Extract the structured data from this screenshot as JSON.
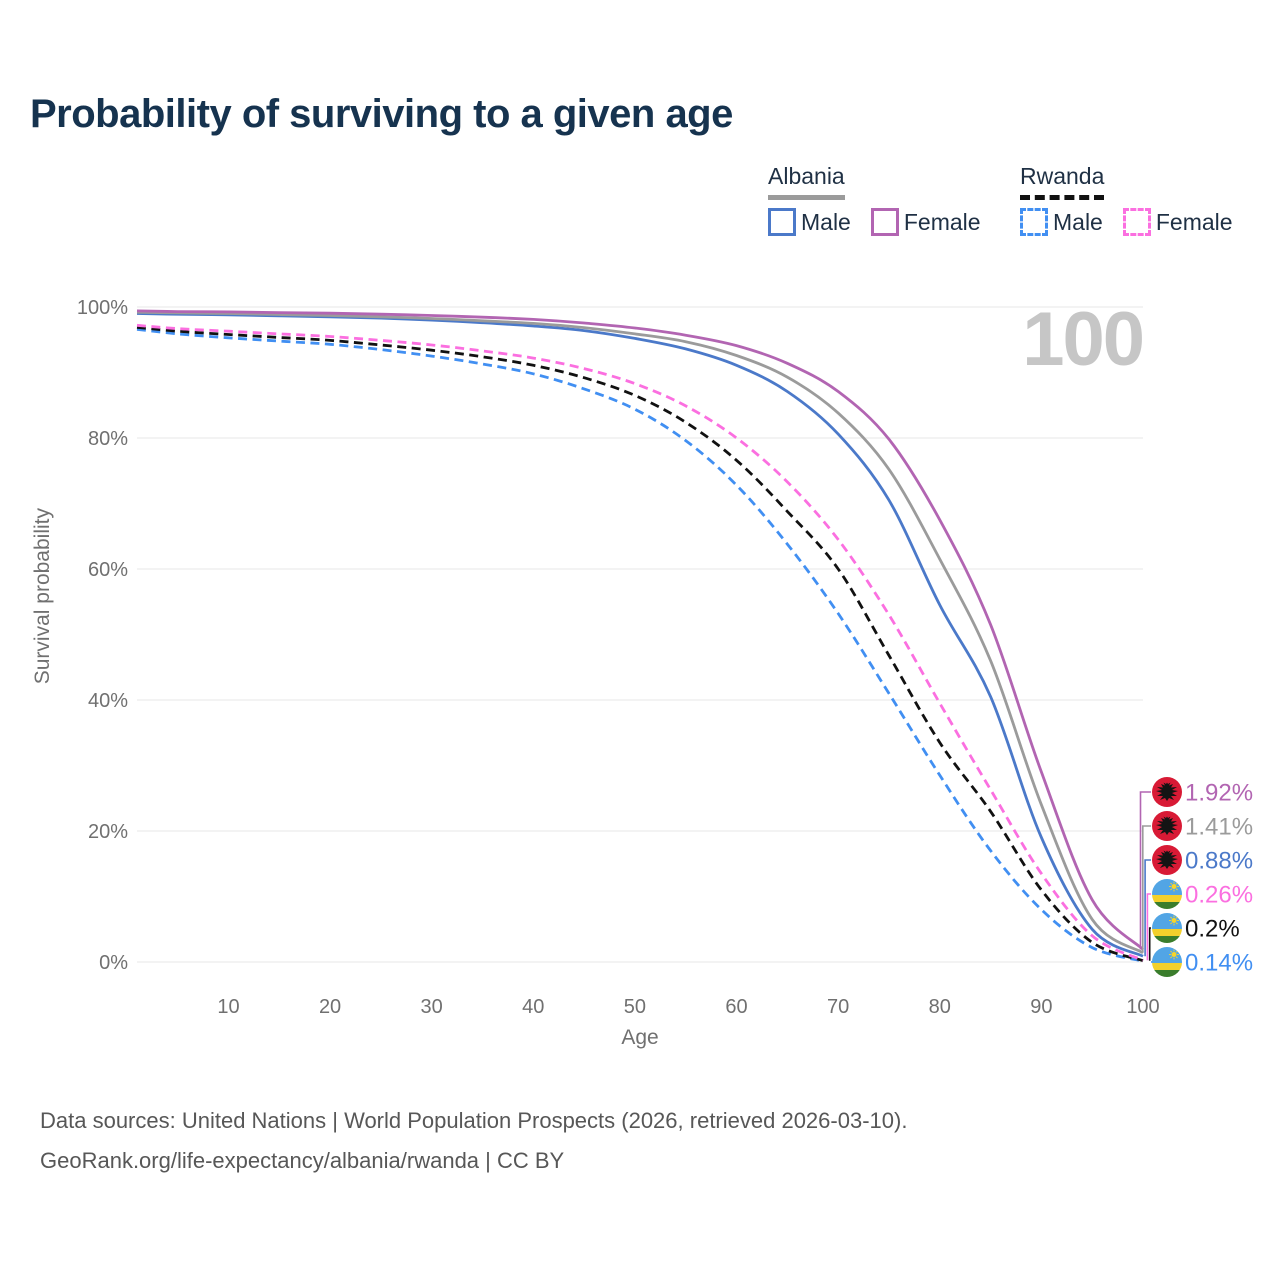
{
  "title": "Probability of surviving to a given age",
  "watermark": "100",
  "theme": {
    "title-color": "#16334f",
    "legend-text": "#1f3044",
    "axis-text": "#707070",
    "watermark-color": "#c6c6c6",
    "grid-color": "#ececec",
    "footer-color": "#575757",
    "background": "#ffffff"
  },
  "legend": {
    "groups": [
      {
        "country": "Albania",
        "line_style": "solid",
        "line_color": "#9b9b9b",
        "entries": [
          {
            "label": "Male",
            "color": "#4b79c9",
            "dashed": false
          },
          {
            "label": "Female",
            "color": "#b265b2",
            "dashed": false
          }
        ]
      },
      {
        "country": "Rwanda",
        "line_style": "dashed",
        "line_color": "#111111",
        "entries": [
          {
            "label": "Male",
            "color": "#418ff2",
            "dashed": true
          },
          {
            "label": "Female",
            "color": "#fb6fe0",
            "dashed": true
          }
        ]
      }
    ]
  },
  "chart_data": {
    "type": "line",
    "title": "Probability of surviving to a given age",
    "xlabel": "Age",
    "ylabel": "Survival probability",
    "x_domain": [
      1,
      100
    ],
    "y_domain": [
      0,
      100
    ],
    "x_ticks": [
      10,
      20,
      30,
      40,
      50,
      60,
      70,
      80,
      90,
      100
    ],
    "y_ticks": [
      0,
      20,
      40,
      60,
      80,
      100
    ],
    "y_tick_suffix": "%",
    "grid": true,
    "ages": [
      1,
      5,
      10,
      15,
      20,
      25,
      30,
      35,
      40,
      45,
      50,
      55,
      60,
      65,
      70,
      75,
      80,
      85,
      90,
      95,
      100
    ],
    "series": [
      {
        "name": "Albania Female",
        "country": "Albania",
        "style": "solid",
        "color": "#b265b2",
        "values": [
          99.4,
          99.3,
          99.25,
          99.15,
          99.05,
          98.9,
          98.7,
          98.45,
          98.1,
          97.55,
          96.8,
          95.7,
          94.1,
          91.4,
          87.1,
          79.8,
          67.5,
          51.5,
          29.0,
          9.5,
          1.92
        ]
      },
      {
        "name": "Albania",
        "country": "Albania",
        "style": "solid",
        "color": "#9b9b9b",
        "values": [
          99.2,
          99.1,
          99.0,
          98.85,
          98.7,
          98.5,
          98.25,
          97.9,
          97.5,
          96.85,
          95.9,
          94.7,
          92.6,
          89.3,
          83.8,
          75.2,
          61.5,
          46.0,
          24.0,
          6.5,
          1.41
        ]
      },
      {
        "name": "Albania Male",
        "country": "Albania",
        "style": "solid",
        "color": "#4b79c9",
        "values": [
          99.0,
          98.9,
          98.8,
          98.65,
          98.5,
          98.3,
          98.0,
          97.6,
          97.1,
          96.4,
          95.2,
          93.6,
          91.1,
          87.1,
          80.6,
          70.5,
          54.5,
          40.5,
          19.0,
          5.0,
          0.88
        ]
      },
      {
        "name": "Rwanda Female",
        "country": "Rwanda",
        "style": "dashed",
        "color": "#fb6fe0",
        "values": [
          97.2,
          96.7,
          96.3,
          95.9,
          95.5,
          94.9,
          94.2,
          93.3,
          92.2,
          90.6,
          88.3,
          84.9,
          80.0,
          73.3,
          64.5,
          53.0,
          39.5,
          26.3,
          13.5,
          4.0,
          0.26
        ]
      },
      {
        "name": "Rwanda",
        "country": "Rwanda",
        "style": "dashed",
        "color": "#111111",
        "values": [
          96.9,
          96.3,
          95.8,
          95.35,
          94.9,
          94.2,
          93.4,
          92.4,
          91.1,
          89.2,
          86.5,
          82.4,
          76.6,
          68.8,
          60.0,
          46.8,
          33.5,
          23.0,
          11.0,
          3.0,
          0.2
        ]
      },
      {
        "name": "Rwanda Male",
        "country": "Rwanda",
        "style": "dashed",
        "color": "#418ff2",
        "values": [
          96.6,
          95.9,
          95.3,
          94.8,
          94.3,
          93.5,
          92.5,
          91.3,
          89.8,
          87.5,
          84.4,
          79.6,
          72.8,
          63.8,
          53.2,
          41.0,
          28.5,
          17.0,
          8.0,
          2.2,
          0.14
        ]
      }
    ],
    "end_labels": [
      {
        "value": "1.92%",
        "color": "#b265b2",
        "flag": "albania"
      },
      {
        "value": "1.41%",
        "color": "#9b9b9b",
        "flag": "albania"
      },
      {
        "value": "0.88%",
        "color": "#4b79c9",
        "flag": "albania"
      },
      {
        "value": "0.26%",
        "color": "#fb6fe0",
        "flag": "rwanda"
      },
      {
        "value": "0.2%",
        "color": "#111111",
        "flag": "rwanda"
      },
      {
        "value": "0.14%",
        "color": "#418ff2",
        "flag": "rwanda"
      }
    ],
    "flags": {
      "albania": {
        "background": "#d81a35",
        "eagle": "#141414"
      },
      "rwanda": {
        "blue": "#52a5e5",
        "yellow": "#f3d02c",
        "green": "#3a7d2c",
        "sun": "#f7d52a"
      }
    }
  },
  "footer": {
    "line1": "Data sources: United Nations | World Population Prospects (2026, retrieved 2026-03-10).",
    "line2": "GeoRank.org/life-expectancy/albania/rwanda | CC BY"
  }
}
